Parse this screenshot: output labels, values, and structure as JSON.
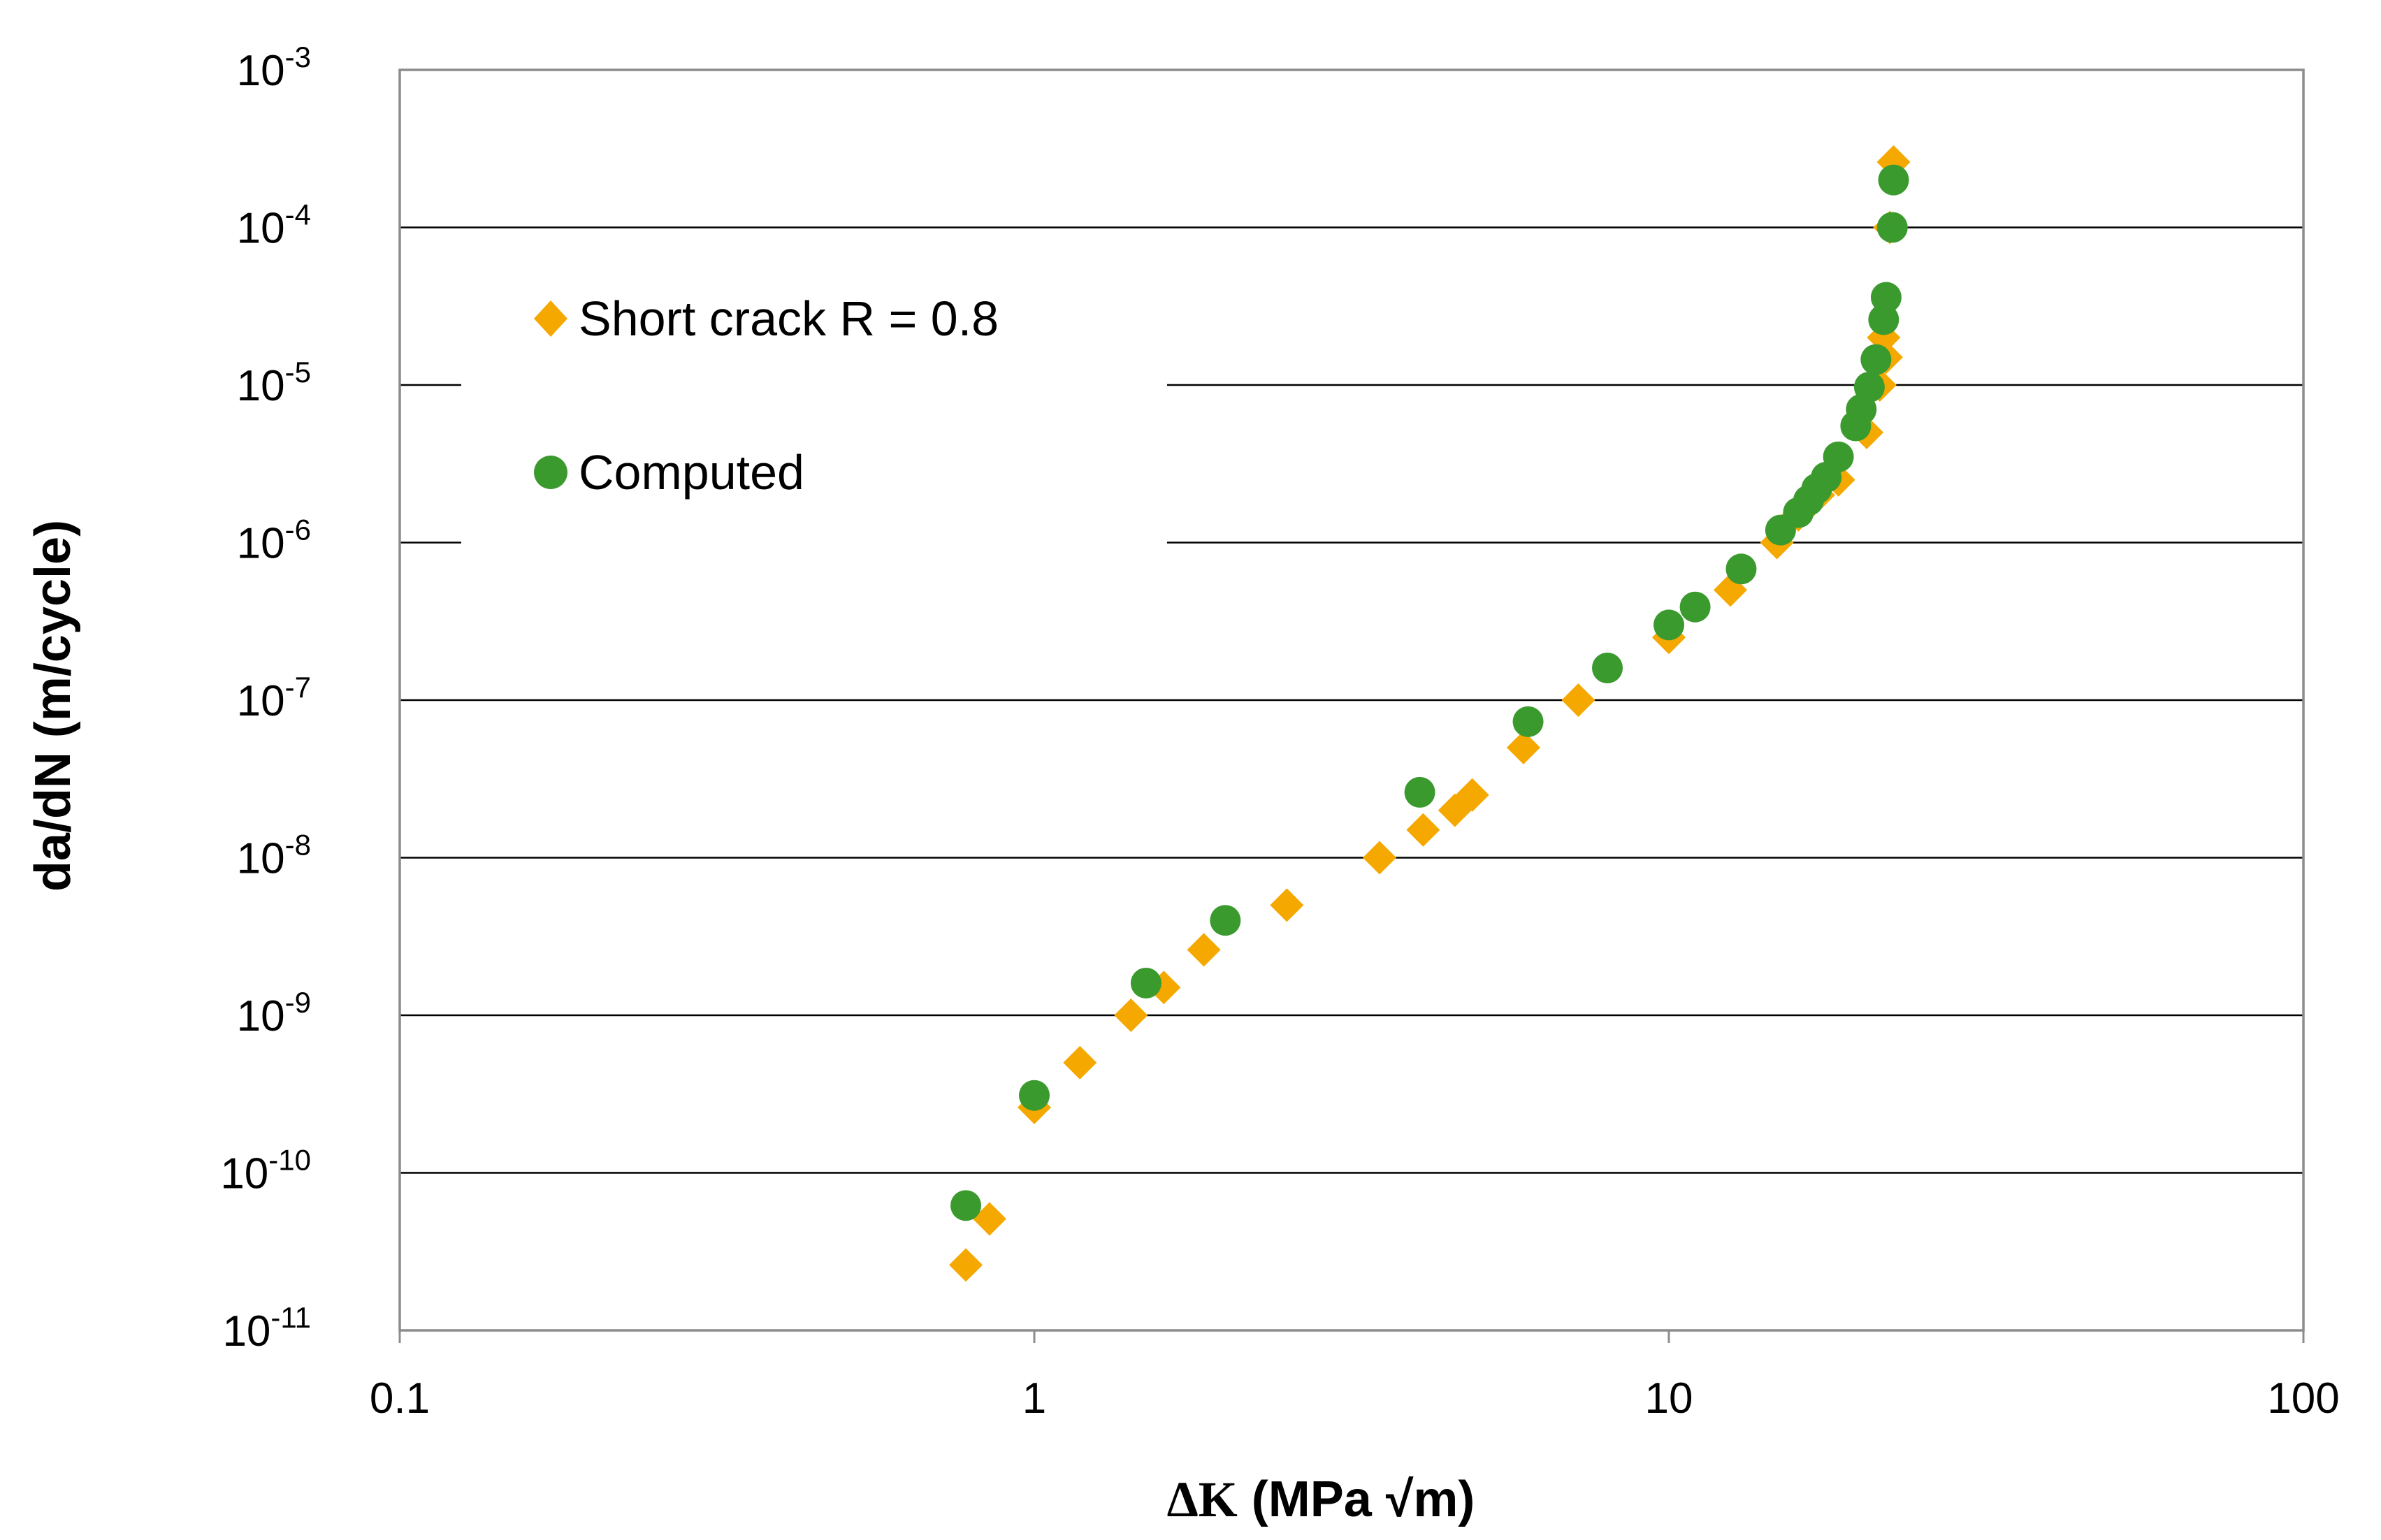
{
  "chart_data": {
    "type": "scatter",
    "title": "",
    "xlabel": {
      "delta": "Δ",
      "k": "K",
      "units": " (MPa √m)"
    },
    "ylabel": "da/dN (m/cycle)",
    "xscale": "log",
    "yscale": "log",
    "xlim": [
      0.1,
      100
    ],
    "ylim": [
      1e-11,
      0.001
    ],
    "grid": "horizontal",
    "legend_position": "upper-left",
    "x_ticks": [
      {
        "value": 0.1,
        "label": "0.1"
      },
      {
        "value": 1,
        "label": "1"
      },
      {
        "value": 10,
        "label": "10"
      },
      {
        "value": 100,
        "label": "100"
      }
    ],
    "y_ticks": [
      {
        "value": 0.001,
        "base": "10",
        "exp": "-3"
      },
      {
        "value": 0.0001,
        "base": "10",
        "exp": "-4"
      },
      {
        "value": 1e-05,
        "base": "10",
        "exp": "-5"
      },
      {
        "value": 1e-06,
        "base": "10",
        "exp": "-6"
      },
      {
        "value": 1e-07,
        "base": "10",
        "exp": "-7"
      },
      {
        "value": 1e-08,
        "base": "10",
        "exp": "-8"
      },
      {
        "value": 1e-09,
        "base": "10",
        "exp": "-9"
      },
      {
        "value": 1e-10,
        "base": "10",
        "exp": "-10"
      },
      {
        "value": 1e-11,
        "base": "10",
        "exp": "-11"
      }
    ],
    "series": [
      {
        "name": "Short crack R = 0.8",
        "marker": "diamond",
        "color": "#F5A800",
        "points": [
          [
            0.78,
            2.6e-11
          ],
          [
            0.85,
            5.1e-11
          ],
          [
            1.0,
            2.6e-10
          ],
          [
            1.18,
            5e-10
          ],
          [
            1.42,
            1e-09
          ],
          [
            1.6,
            1.5e-09
          ],
          [
            1.85,
            2.6e-09
          ],
          [
            2.5,
            5e-09
          ],
          [
            3.5,
            1e-08
          ],
          [
            4.1,
            1.5e-08
          ],
          [
            4.6,
            2e-08
          ],
          [
            4.9,
            2.5e-08
          ],
          [
            5.9,
            5e-08
          ],
          [
            7.2,
            1e-07
          ],
          [
            10.0,
            2.5e-07
          ],
          [
            12.5,
            5e-07
          ],
          [
            14.8,
            1e-06
          ],
          [
            16.0,
            1.5e-06
          ],
          [
            17.2,
            2e-06
          ],
          [
            18.5,
            2.5e-06
          ],
          [
            20.5,
            5e-06
          ],
          [
            21.5,
            1e-05
          ],
          [
            22.0,
            1.5e-05
          ],
          [
            21.8,
            2e-05
          ],
          [
            22.3,
            0.0001
          ],
          [
            22.6,
            0.00026
          ]
        ]
      },
      {
        "name": "Computed",
        "marker": "circle",
        "color": "#3A9A2E",
        "points": [
          [
            0.78,
            6.2e-11
          ],
          [
            1.0,
            3.1e-10
          ],
          [
            1.5,
            1.6e-09
          ],
          [
            2.0,
            4e-09
          ],
          [
            4.05,
            2.6e-08
          ],
          [
            6.0,
            7.3e-08
          ],
          [
            8.0,
            1.6e-07
          ],
          [
            10.0,
            3e-07
          ],
          [
            11.0,
            3.9e-07
          ],
          [
            13.0,
            6.8e-07
          ],
          [
            15.0,
            1.2e-06
          ],
          [
            16.0,
            1.55e-06
          ],
          [
            16.6,
            1.85e-06
          ],
          [
            17.1,
            2.2e-06
          ],
          [
            17.7,
            2.6e-06
          ],
          [
            18.5,
            3.5e-06
          ],
          [
            19.7,
            5.5e-06
          ],
          [
            20.1,
            7e-06
          ],
          [
            20.7,
            9.7e-06
          ],
          [
            21.2,
            1.45e-05
          ],
          [
            21.8,
            2.6e-05
          ],
          [
            22.0,
            3.6e-05
          ],
          [
            22.5,
            0.0001
          ],
          [
            22.6,
            0.0002
          ]
        ]
      }
    ]
  }
}
